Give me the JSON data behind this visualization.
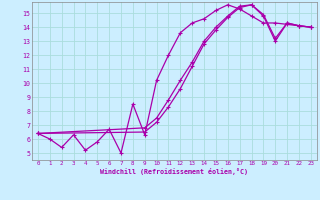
{
  "xlabel": "Windchill (Refroidissement éolien,°C)",
  "bg_color": "#cceeff",
  "grid_color": "#aadddd",
  "line_color": "#aa00aa",
  "xlim": [
    -0.5,
    23.5
  ],
  "ylim": [
    4.5,
    15.8
  ],
  "xticks": [
    0,
    1,
    2,
    3,
    4,
    5,
    6,
    7,
    8,
    9,
    10,
    11,
    12,
    13,
    14,
    15,
    16,
    17,
    18,
    19,
    20,
    21,
    22,
    23
  ],
  "yticks": [
    5,
    6,
    7,
    8,
    9,
    10,
    11,
    12,
    13,
    14,
    15
  ],
  "line1_x": [
    0,
    1,
    2,
    3,
    4,
    5,
    6,
    7,
    8,
    9,
    10,
    11,
    12,
    13,
    14,
    15,
    16,
    17,
    18,
    19,
    20,
    21,
    22,
    23
  ],
  "line1_y": [
    6.4,
    6.0,
    5.4,
    6.3,
    5.2,
    5.8,
    6.7,
    5.0,
    8.5,
    6.3,
    10.2,
    12.0,
    13.6,
    14.3,
    14.6,
    15.2,
    15.6,
    15.3,
    14.8,
    14.3,
    14.3,
    14.2,
    14.1,
    14.0
  ],
  "line2_x": [
    0,
    9,
    10,
    11,
    12,
    13,
    14,
    15,
    16,
    17,
    18,
    19,
    20,
    21,
    22,
    23
  ],
  "line2_y": [
    6.4,
    6.5,
    7.2,
    8.3,
    9.6,
    11.2,
    12.8,
    13.8,
    14.7,
    15.4,
    15.6,
    14.8,
    13.0,
    14.3,
    14.1,
    14.0
  ],
  "line3_x": [
    0,
    9,
    10,
    11,
    12,
    13,
    14,
    15,
    16,
    17,
    18,
    19,
    20,
    21,
    22,
    23
  ],
  "line3_y": [
    6.4,
    6.8,
    7.5,
    8.8,
    10.2,
    11.5,
    13.0,
    14.0,
    14.8,
    15.5,
    15.6,
    14.9,
    13.2,
    14.3,
    14.1,
    14.0
  ]
}
